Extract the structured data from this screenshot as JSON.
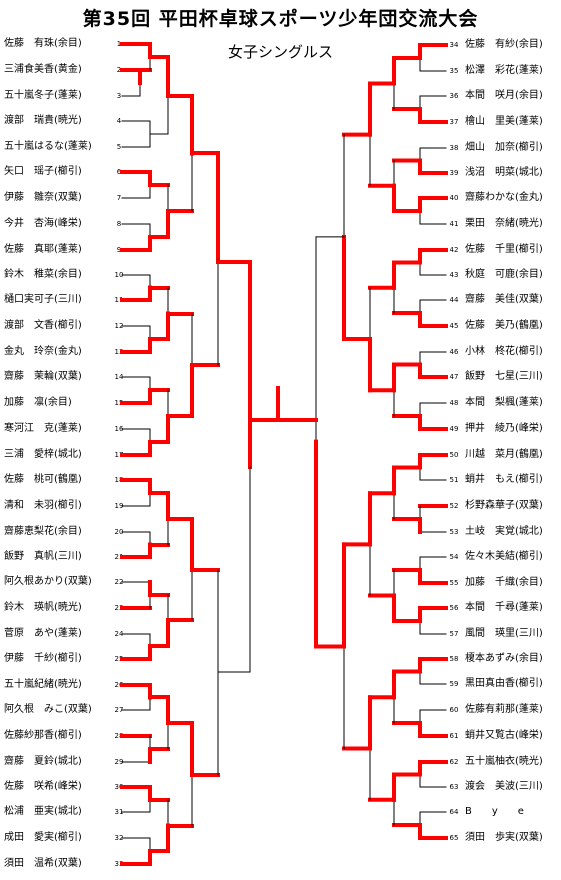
{
  "title": "第35回 平田杯卓球スポーツ少年団交流大会",
  "subtitle": "女子シングルス",
  "colors": {
    "winner_line": "#ff0000",
    "bracket_line": "#000000"
  },
  "left_players": [
    {
      "seed": "1",
      "name": "佐藤　有珠(余目)"
    },
    {
      "seed": "2",
      "name": "三浦食美香(黄金)"
    },
    {
      "seed": "3",
      "name": "五十嵐冬子(蓬莱)"
    },
    {
      "seed": "4",
      "name": "渡部　瑞貴(暁光)"
    },
    {
      "seed": "5",
      "name": "五十嵐はるな(蓬莱)"
    },
    {
      "seed": "6",
      "name": "矢口　瑶子(櫛引)"
    },
    {
      "seed": "7",
      "name": "伊藤　雛奈(双葉)"
    },
    {
      "seed": "8",
      "name": "今井　杏海(峰栄)"
    },
    {
      "seed": "9",
      "name": "佐藤　真耶(蓬莱)"
    },
    {
      "seed": "10",
      "name": "鈴木　稚菜(余目)"
    },
    {
      "seed": "11",
      "name": "樋口実可子(三川)"
    },
    {
      "seed": "12",
      "name": "渡部　文香(櫛引)"
    },
    {
      "seed": "13",
      "name": "金丸　玲奈(金丸)"
    },
    {
      "seed": "14",
      "name": "齋藤　茉輪(双葉)"
    },
    {
      "seed": "15",
      "name": "加藤　凛(余目)"
    },
    {
      "seed": "16",
      "name": "寒河江　克(蓬莱)"
    },
    {
      "seed": "17",
      "name": "三浦　愛梓(城北)"
    },
    {
      "seed": "18",
      "name": "佐藤　桃可(鶴凰)"
    },
    {
      "seed": "19",
      "name": "清和　未羽(櫛引)"
    },
    {
      "seed": "20",
      "name": "齋藤恵梨花(余目)"
    },
    {
      "seed": "21",
      "name": "飯野　真帆(三川)"
    },
    {
      "seed": "22",
      "name": "阿久根あかり(双葉)"
    },
    {
      "seed": "23",
      "name": "鈴木　瑛帆(暁光)"
    },
    {
      "seed": "24",
      "name": "菅原　あや(蓬莱)"
    },
    {
      "seed": "25",
      "name": "伊藤　千紗(櫛引)"
    },
    {
      "seed": "26",
      "name": "五十嵐紀緒(暁光)"
    },
    {
      "seed": "27",
      "name": "阿久根　みこ(双葉)"
    },
    {
      "seed": "28",
      "name": "佐藤紗那香(櫛引)"
    },
    {
      "seed": "29",
      "name": "齋藤　夏鈴(城北)"
    },
    {
      "seed": "30",
      "name": "佐藤　咲希(峰栄)"
    },
    {
      "seed": "31",
      "name": "松浦　亜実(城北)"
    },
    {
      "seed": "32",
      "name": "成田　愛実(櫛引)"
    },
    {
      "seed": "33",
      "name": "須田　温希(双葉)"
    }
  ],
  "right_players": [
    {
      "seed": "34",
      "name": "佐藤　有紗(余目)"
    },
    {
      "seed": "35",
      "name": "松澤　彩花(蓬莱)"
    },
    {
      "seed": "36",
      "name": "本間　咲月(余目)"
    },
    {
      "seed": "37",
      "name": "檜山　里美(蓬莱)"
    },
    {
      "seed": "38",
      "name": "畑山　加奈(櫛引)"
    },
    {
      "seed": "39",
      "name": "浅沼　明菜(城北)"
    },
    {
      "seed": "40",
      "name": "齋藤わかな(金丸)"
    },
    {
      "seed": "41",
      "name": "栗田　奈緒(暁光)"
    },
    {
      "seed": "42",
      "name": "佐藤　千里(櫛引)"
    },
    {
      "seed": "43",
      "name": "秋庭　可鹿(余目)"
    },
    {
      "seed": "44",
      "name": "齋藤　美佳(双葉)"
    },
    {
      "seed": "45",
      "name": "佐藤　美乃(鶴凰)"
    },
    {
      "seed": "46",
      "name": "小林　柊花(櫛引)"
    },
    {
      "seed": "47",
      "name": "飯野　七星(三川)"
    },
    {
      "seed": "48",
      "name": "本間　梨楓(蓬莱)"
    },
    {
      "seed": "49",
      "name": "押井　綾乃(峰栄)"
    },
    {
      "seed": "50",
      "name": "川越　菜月(鶴凰)"
    },
    {
      "seed": "51",
      "name": "蛸井　もえ(櫛引)"
    },
    {
      "seed": "52",
      "name": "杉野森華子(双葉)"
    },
    {
      "seed": "53",
      "name": "土岐　実覚(城北)"
    },
    {
      "seed": "54",
      "name": "佐々木美結(櫛引)"
    },
    {
      "seed": "55",
      "name": "加藤　千織(余目)"
    },
    {
      "seed": "56",
      "name": "本間　千尋(蓬莱)"
    },
    {
      "seed": "57",
      "name": "風間　瑛里(三川)"
    },
    {
      "seed": "58",
      "name": "榎本あずみ(余目)"
    },
    {
      "seed": "59",
      "name": "黒田真由香(櫛引)"
    },
    {
      "seed": "60",
      "name": "佐藤有莉那(蓬莱)"
    },
    {
      "seed": "61",
      "name": "蛸井又覧古(峰栄)"
    },
    {
      "seed": "62",
      "name": "五十嵐柚衣(暁光)"
    },
    {
      "seed": "63",
      "name": "渡会　美波(三川)"
    },
    {
      "seed": "64",
      "name": "B　　y　　e"
    },
    {
      "seed": "65",
      "name": "須田　歩実(双葉)"
    }
  ]
}
